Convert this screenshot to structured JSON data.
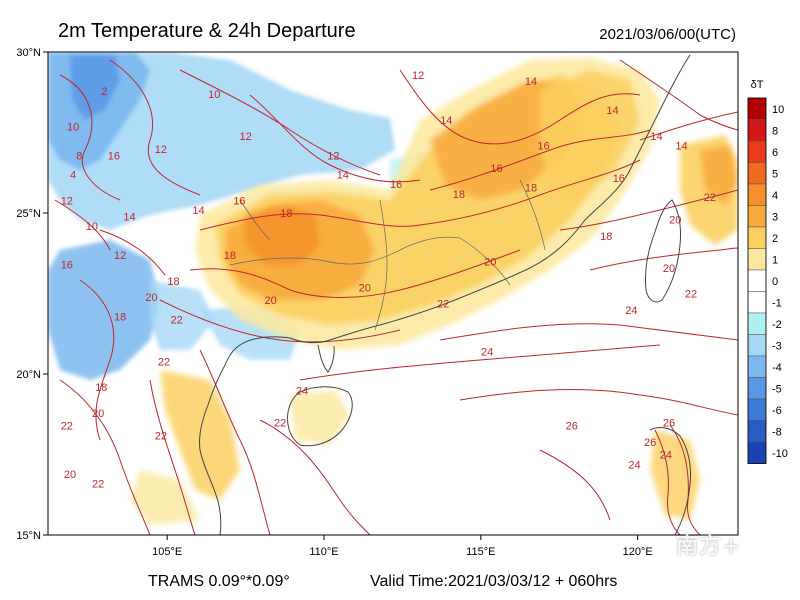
{
  "header": {
    "title": "2m Temperature & 24h Departure",
    "timestamp": "2021/03/06/00(UTC)"
  },
  "footer": {
    "model": "TRAMS 0.09°*0.09°",
    "valid_time": "Valid Time:2021/03/03/12 + 060hrs"
  },
  "watermark": "南方+",
  "axes": {
    "lon_ticks": [
      "105°E",
      "110°E",
      "115°E",
      "120°E"
    ],
    "lat_ticks": [
      "30°N",
      "25°N",
      "20°N",
      "15°N"
    ],
    "lon_range": [
      101.2,
      123.2
    ],
    "lat_range": [
      15,
      30
    ]
  },
  "colorbar": {
    "title": "δT",
    "levels": [
      {
        "label": "10",
        "color": "#b00000"
      },
      {
        "label": "8",
        "color": "#d01818"
      },
      {
        "label": "6",
        "color": "#ea3a1a"
      },
      {
        "label": "5",
        "color": "#f26a1e"
      },
      {
        "label": "4",
        "color": "#f6902a"
      },
      {
        "label": "3",
        "color": "#f8aa3c"
      },
      {
        "label": "2",
        "color": "#fbd060"
      },
      {
        "label": "1",
        "color": "#fde79c"
      },
      {
        "label": "0",
        "color": "#ffffff"
      },
      {
        "label": "-1",
        "color": "#ffffff"
      },
      {
        "label": "-2",
        "color": "#b0f0f0"
      },
      {
        "label": "-3",
        "color": "#a6d8f6"
      },
      {
        "label": "-4",
        "color": "#7ab8ee"
      },
      {
        "label": "-5",
        "color": "#5898e6"
      },
      {
        "label": "-6",
        "color": "#3c7ad8"
      },
      {
        "label": "-8",
        "color": "#2a5cc6"
      },
      {
        "label": "-10",
        "color": "#1a42b0"
      }
    ]
  },
  "contour_labels": [
    {
      "text": "12",
      "lon": 104.8,
      "lat": 26.9
    },
    {
      "text": "10",
      "lon": 106.5,
      "lat": 28.6
    },
    {
      "text": "12",
      "lon": 107.5,
      "lat": 27.3
    },
    {
      "text": "12",
      "lon": 110.3,
      "lat": 26.7
    },
    {
      "text": "14",
      "lon": 110.6,
      "lat": 26.1
    },
    {
      "text": "16",
      "lon": 112.3,
      "lat": 25.8
    },
    {
      "text": "14",
      "lon": 113.9,
      "lat": 27.8
    },
    {
      "text": "12",
      "lon": 113.0,
      "lat": 29.2
    },
    {
      "text": "14",
      "lon": 116.6,
      "lat": 29.0
    },
    {
      "text": "16",
      "lon": 117.0,
      "lat": 27.0
    },
    {
      "text": "14",
      "lon": 119.2,
      "lat": 28.1
    },
    {
      "text": "14",
      "lon": 120.6,
      "lat": 27.3
    },
    {
      "text": "16",
      "lon": 115.5,
      "lat": 26.3
    },
    {
      "text": "18",
      "lon": 114.3,
      "lat": 25.5
    },
    {
      "text": "18",
      "lon": 116.6,
      "lat": 25.7
    },
    {
      "text": "16",
      "lon": 119.4,
      "lat": 26.0
    },
    {
      "text": "18",
      "lon": 108.8,
      "lat": 24.9
    },
    {
      "text": "16",
      "lon": 107.3,
      "lat": 25.3
    },
    {
      "text": "18",
      "lon": 107.0,
      "lat": 23.6
    },
    {
      "text": "18",
      "lon": 105.2,
      "lat": 22.8
    },
    {
      "text": "20",
      "lon": 108.3,
      "lat": 22.2
    },
    {
      "text": "20",
      "lon": 111.3,
      "lat": 22.6
    },
    {
      "text": "22",
      "lon": 113.8,
      "lat": 22.1
    },
    {
      "text": "20",
      "lon": 115.3,
      "lat": 23.4
    },
    {
      "text": "18",
      "lon": 119.0,
      "lat": 24.2
    },
    {
      "text": "20",
      "lon": 121.2,
      "lat": 24.7
    },
    {
      "text": "20",
      "lon": 121.0,
      "lat": 23.2
    },
    {
      "text": "22",
      "lon": 121.7,
      "lat": 22.4
    },
    {
      "text": "22",
      "lon": 122.3,
      "lat": 25.4
    },
    {
      "text": "14",
      "lon": 121.4,
      "lat": 27.0
    },
    {
      "text": "24",
      "lon": 119.8,
      "lat": 21.9
    },
    {
      "text": "24",
      "lon": 115.2,
      "lat": 20.6
    },
    {
      "text": "26",
      "lon": 117.9,
      "lat": 18.3
    },
    {
      "text": "26",
      "lon": 121.0,
      "lat": 18.4
    },
    {
      "text": "24",
      "lon": 119.9,
      "lat": 17.1
    },
    {
      "text": "22",
      "lon": 108.6,
      "lat": 18.4
    },
    {
      "text": "24",
      "lon": 109.3,
      "lat": 19.4
    },
    {
      "text": "22",
      "lon": 104.8,
      "lat": 18.0
    },
    {
      "text": "22",
      "lon": 104.9,
      "lat": 20.3
    },
    {
      "text": "22",
      "lon": 105.3,
      "lat": 21.6
    },
    {
      "text": "20",
      "lon": 104.5,
      "lat": 22.3
    },
    {
      "text": "18",
      "lon": 103.5,
      "lat": 21.7
    },
    {
      "text": "18",
      "lon": 102.9,
      "lat": 19.5
    },
    {
      "text": "20",
      "lon": 102.8,
      "lat": 18.7
    },
    {
      "text": "12",
      "lon": 103.5,
      "lat": 23.6
    },
    {
      "text": "14",
      "lon": 103.8,
      "lat": 24.8
    },
    {
      "text": "10",
      "lon": 102.6,
      "lat": 24.5
    },
    {
      "text": "12",
      "lon": 101.8,
      "lat": 25.3
    },
    {
      "text": "4",
      "lon": 102.0,
      "lat": 26.1
    },
    {
      "text": "8",
      "lon": 102.2,
      "lat": 26.7
    },
    {
      "text": "2",
      "lon": 103.0,
      "lat": 28.7
    },
    {
      "text": "10",
      "lon": 102.0,
      "lat": 27.6
    },
    {
      "text": "16",
      "lon": 103.3,
      "lat": 26.7
    },
    {
      "text": "14",
      "lon": 106.0,
      "lat": 25.0
    },
    {
      "text": "16",
      "lon": 101.8,
      "lat": 23.3
    },
    {
      "text": "20",
      "lon": 101.9,
      "lat": 16.8
    },
    {
      "text": "22",
      "lon": 102.8,
      "lat": 16.5
    },
    {
      "text": "22",
      "lon": 101.8,
      "lat": 18.3
    },
    {
      "text": "26",
      "lon": 120.4,
      "lat": 17.8
    },
    {
      "text": "24",
      "lon": 120.9,
      "lat": 17.4
    }
  ]
}
